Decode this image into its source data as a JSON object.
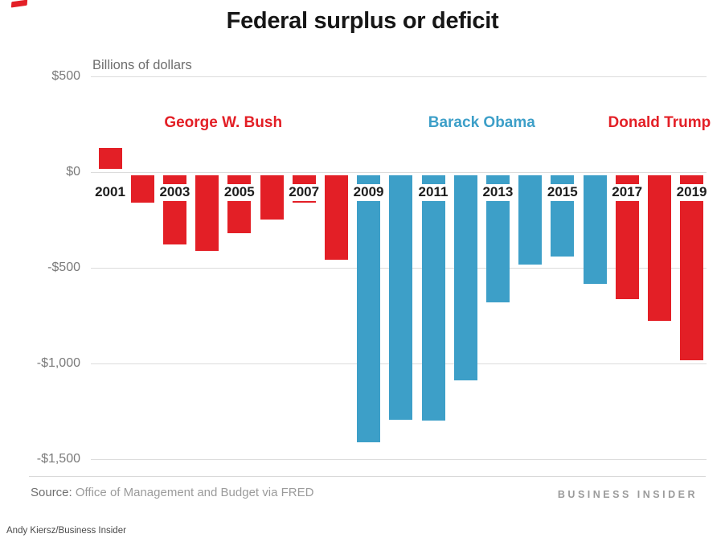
{
  "chart_data": {
    "type": "bar",
    "title": "Federal surplus or deficit",
    "subtitle": "Billions of dollars",
    "x": [
      2001,
      2002,
      2003,
      2004,
      2005,
      2006,
      2007,
      2008,
      2009,
      2010,
      2011,
      2012,
      2013,
      2014,
      2015,
      2016,
      2017,
      2018,
      2019
    ],
    "values": [
      128,
      -158,
      -378,
      -413,
      -318,
      -248,
      -161,
      -459,
      -1413,
      -1294,
      -1300,
      -1087,
      -680,
      -485,
      -442,
      -585,
      -665,
      -779,
      -984
    ],
    "series_groups": [
      {
        "name": "George W. Bush",
        "color": "#e31f26",
        "years": [
          2001,
          2008
        ]
      },
      {
        "name": "Barack Obama",
        "color": "#3d9fc8",
        "years": [
          2009,
          2016
        ]
      },
      {
        "name": "Donald Trump",
        "color": "#e31f26",
        "years": [
          2017,
          2019
        ]
      }
    ],
    "yticks": [
      {
        "value": 500,
        "label": "$500"
      },
      {
        "value": 0,
        "label": "$0"
      },
      {
        "value": -500,
        "label": "-$500"
      },
      {
        "value": -1000,
        "label": "-$1,000"
      },
      {
        "value": -1500,
        "label": "-$1,500"
      }
    ],
    "x_tick_labels": [
      "2001",
      "2003",
      "2005",
      "2007",
      "2009",
      "2011",
      "2013",
      "2015",
      "2017",
      "2019"
    ],
    "ylim": [
      -1500,
      500
    ],
    "grid": true,
    "legend_position": "above-bars-inline"
  },
  "footer": {
    "source_label": "Source:",
    "source_rest": " Office of Management and Budget via FRED",
    "brand": "BUSINESS INSIDER",
    "credit": "Andy Kiersz/Business Insider"
  },
  "colors": {
    "accent_red": "#e31f26",
    "accent_blue": "#3d9fc8",
    "gridline": "#dcdcdc"
  }
}
